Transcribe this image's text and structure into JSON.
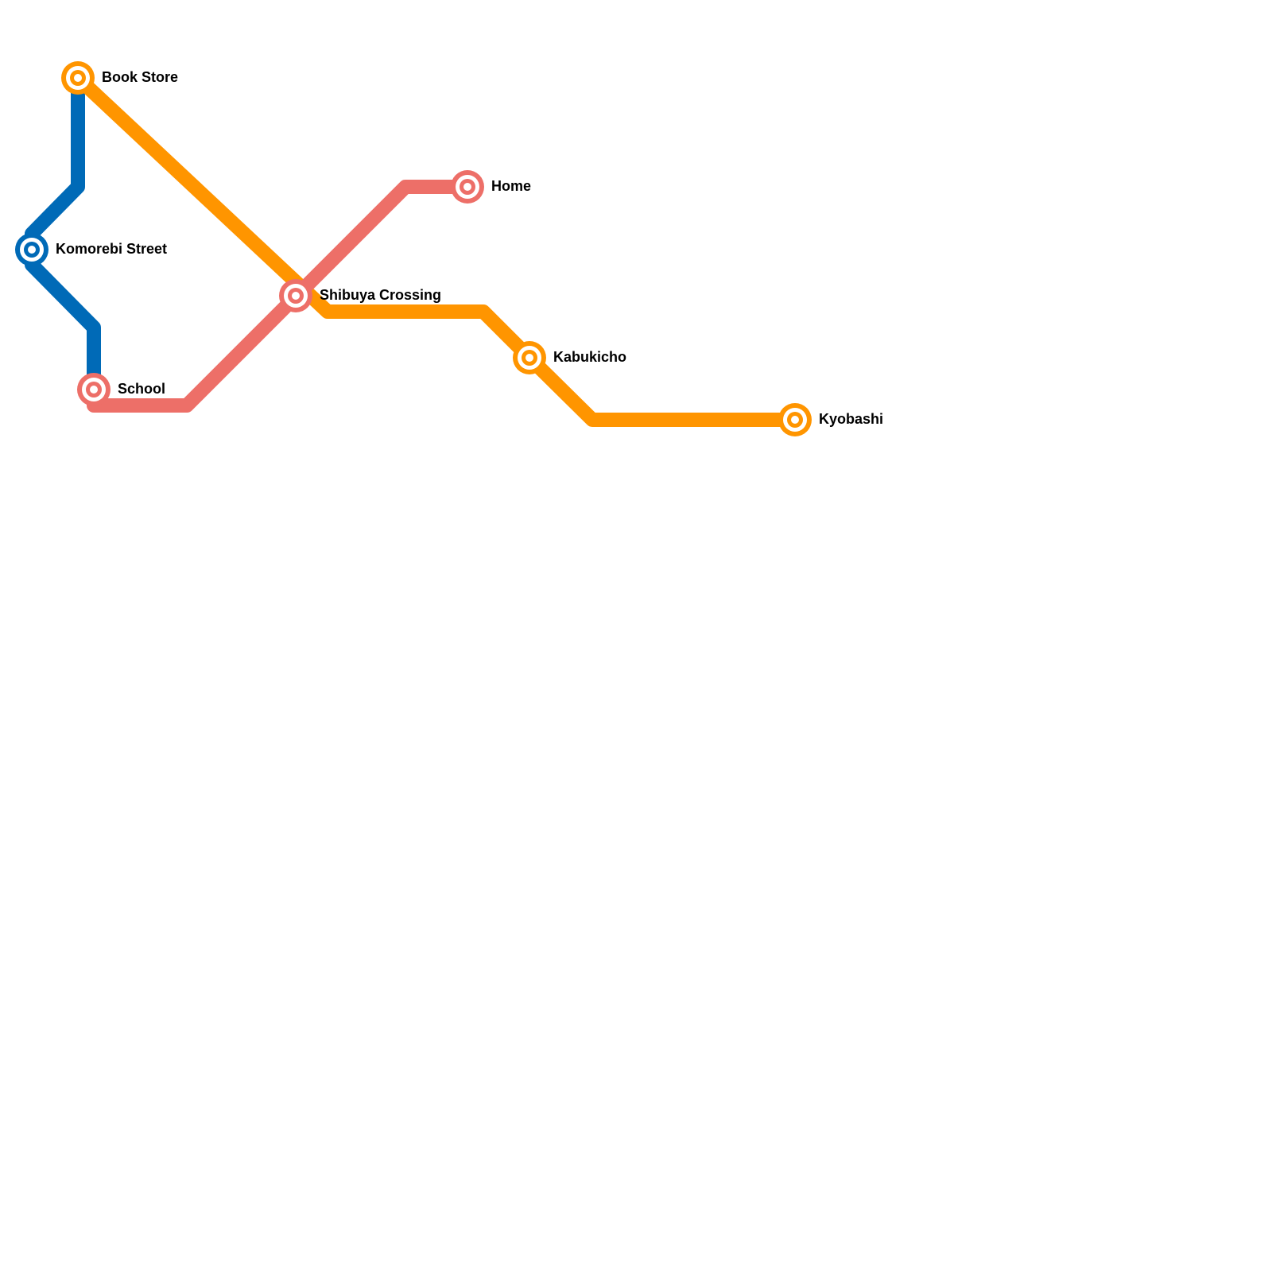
{
  "lines": [
    {
      "id": "blue",
      "color": "#006AB7"
    },
    {
      "id": "orange",
      "color": "#FF9500"
    },
    {
      "id": "red",
      "color": "#ED6F68"
    }
  ],
  "stations": [
    {
      "id": "book-store",
      "name": "Book Store",
      "color": "#FF9500"
    },
    {
      "id": "komorebi-street",
      "name": "Komorebi Street",
      "color": "#006AB7"
    },
    {
      "id": "school",
      "name": "School",
      "color": "#ED6F68"
    },
    {
      "id": "shibuya-crossing",
      "name": "Shibuya Crossing",
      "color": "#ED6F68"
    },
    {
      "id": "home",
      "name": "Home",
      "color": "#ED6F68"
    },
    {
      "id": "kabukicho",
      "name": "Kabukicho",
      "color": "#FF9500"
    },
    {
      "id": "kyobashi",
      "name": "Kyobashi",
      "color": "#FF9500"
    }
  ]
}
